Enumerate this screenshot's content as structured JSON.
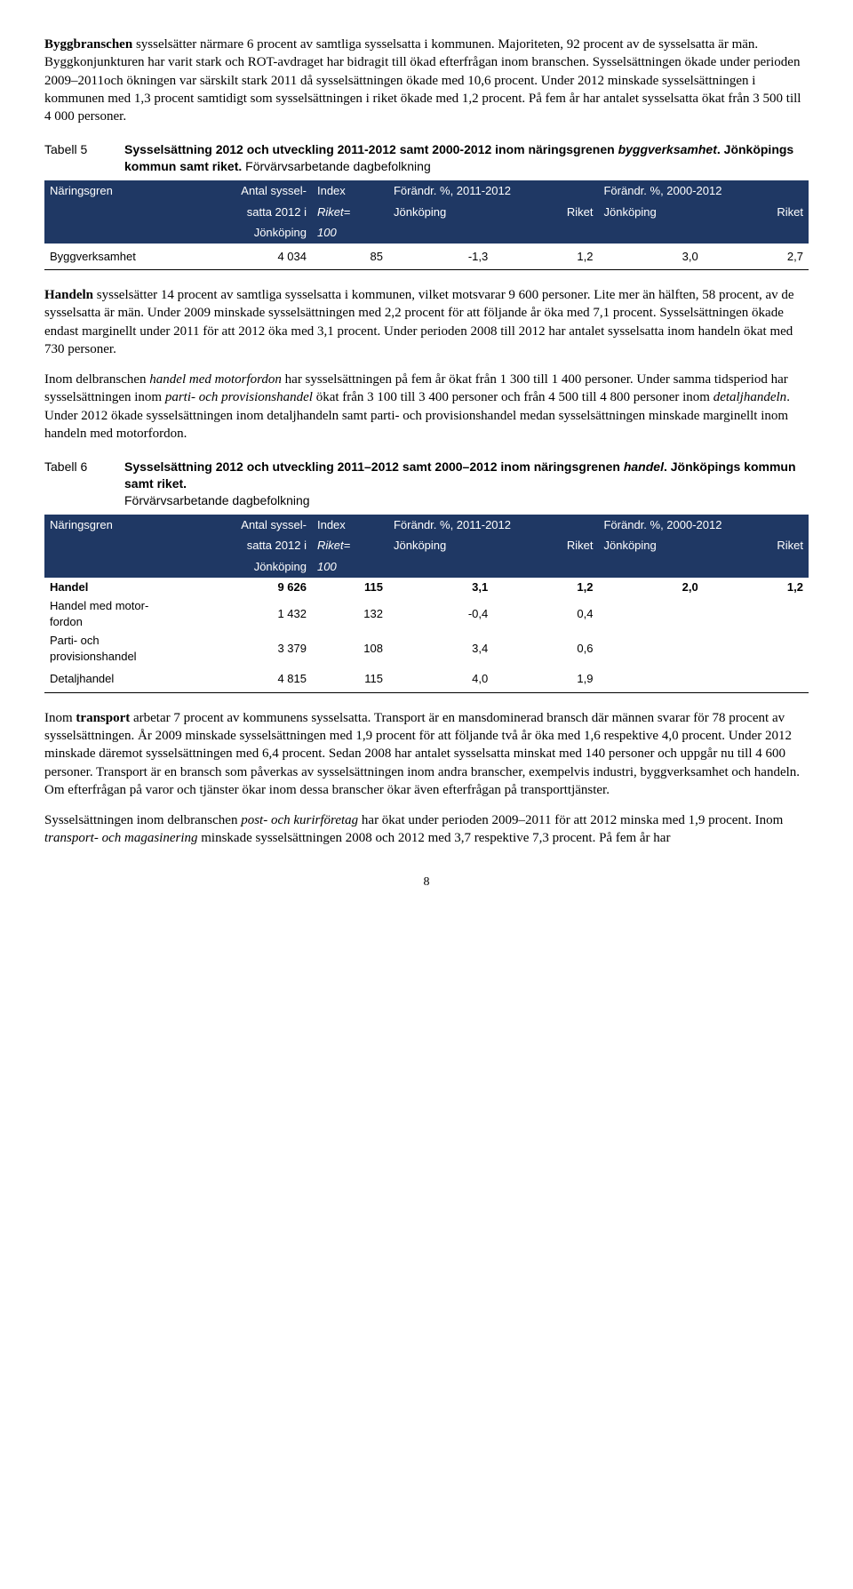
{
  "para1": {
    "lead": "Byggbranschen",
    "rest": " sysselsätter närmare 6 procent av samtliga sysselsatta i kommunen. Majoriteten, 92 procent av de sysselsatta är män. Byggkonjunkturen har varit stark och ROT-avdraget har bidragit till ökad efterfrågan inom branschen. Sysselsättningen ökade under perioden 2009–2011och ökningen var särskilt stark 2011 då sysselsättningen ökade med 10,6 procent. Under 2012 minskade sysselsättningen i kommunen med 1,3 procent samtidigt som sysselsättningen i riket ökade med 1,2 procent. På fem år har antalet sysselsatta ökat från 3 500 till 4 000 personer."
  },
  "table5": {
    "label": "Tabell 5",
    "title_bold1": "Sysselsättning 2012 och utveckling 2011-2012 samt 2000-2012 inom näringsgrenen ",
    "title_italic": "byggverksamhet",
    "title_bold2": ". Jönköpings kommun samt riket.",
    "title_sub": " Förvärvsarbetande dagbefolkning",
    "hdr": {
      "c1": "Näringsgren",
      "c2a": "Antal syssel-",
      "c2b": "satta 2012 i",
      "c2c": "Jönköping",
      "c3a": "Index",
      "c3b": "Riket=",
      "c3c": "100",
      "g1": "Förändr. %, 2011-2012",
      "g2": "Förändr. %, 2000-2012",
      "jk": "Jönköping",
      "rk": "Riket"
    },
    "row": {
      "name": "Byggverksamhet",
      "antal": "4 034",
      "index": "85",
      "d1j": "-1,3",
      "d1r": "1,2",
      "d2j": "3,0",
      "d2r": "2,7"
    }
  },
  "para2": {
    "lead": "Handeln",
    "rest": " sysselsätter 14 procent av samtliga sysselsatta i kommunen, vilket motsvarar 9 600 personer. Lite mer än hälften, 58 procent, av de sysselsatta är män. Under 2009 minskade sysselsättningen med 2,2 procent för att följande år öka med 7,1 procent. Sysselsättningen ökade endast marginellt under 2011 för att 2012 öka med 3,1 procent. Under perioden 2008 till 2012 har antalet sysselsatta inom handeln ökat med 730 personer."
  },
  "para3": {
    "t1": "Inom delbranschen ",
    "i1": "handel med motorfordon",
    "t2": " har sysselsättningen på fem år ökat från 1 300 till 1 400 personer. Under samma tidsperiod har sysselsättningen inom ",
    "i2": "parti- och provisionshandel",
    "t3": " ökat från 3 100 till 3 400 personer och från 4 500 till 4 800 personer inom ",
    "i3": "detaljhandeln",
    "t4": ". Under 2012 ökade sysselsättningen inom detaljhandeln samt parti- och provisionshandel medan sysselsättningen minskade marginellt inom handeln med motorfordon."
  },
  "table6": {
    "label": "Tabell 6",
    "title_bold1": "Sysselsättning 2012 och utveckling 2011–2012 samt 2000–2012 inom näringsgrenen ",
    "title_italic": "handel",
    "title_bold2": ". Jönköpings kommun samt riket.",
    "title_sub": " Förvärvsarbetande dagbefolkning",
    "rows": [
      {
        "name": "Handel",
        "antal": "9 626",
        "index": "115",
        "d1j": "3,1",
        "d1r": "1,2",
        "d2j": "2,0",
        "d2r": "1,2",
        "bold": true
      },
      {
        "name": "Handel med motor-\nfordon",
        "antal": "1 432",
        "index": "132",
        "d1j": "-0,4",
        "d1r": "0,4",
        "d2j": "",
        "d2r": ""
      },
      {
        "name": "Parti- och\nprovisionshandel",
        "antal": "3 379",
        "index": "108",
        "d1j": "3,4",
        "d1r": "0,6",
        "d2j": "",
        "d2r": ""
      },
      {
        "name": "Detaljhandel",
        "antal": "4 815",
        "index": "115",
        "d1j": "4,0",
        "d1r": "1,9",
        "d2j": "",
        "d2r": ""
      }
    ]
  },
  "para4": {
    "t1": "Inom ",
    "b1": "transport",
    "t2": " arbetar 7 procent av kommunens sysselsatta. Transport är en mansdominerad bransch där männen svarar för 78 procent av sysselsättningen. År 2009 minskade sysselsättningen med 1,9 procent för att följande två år öka med 1,6 respektive 4,0 procent. Under 2012 minskade däremot sysselsättningen med 6,4 procent. Sedan 2008 har antalet sysselsatta minskat med 140 personer och uppgår nu till 4 600 personer. Transport är en bransch som påverkas av sysselsättningen inom andra branscher, exempelvis industri, byggverksamhet och handeln. Om efterfrågan på varor och tjänster ökar inom dessa branscher ökar även efterfrågan på transporttjänster."
  },
  "para5": {
    "t1": "Sysselsättningen inom delbranschen ",
    "i1": "post- och kurirföretag",
    "t2": " har ökat under perioden 2009–2011 för att 2012 minska med 1,9 procent. Inom ",
    "i2": "transport- och magasinering",
    "t3": " minskade sysselsättningen 2008 och 2012 med 3,7 respektive 7,3 procent. På fem år har"
  },
  "pagenum": "8"
}
